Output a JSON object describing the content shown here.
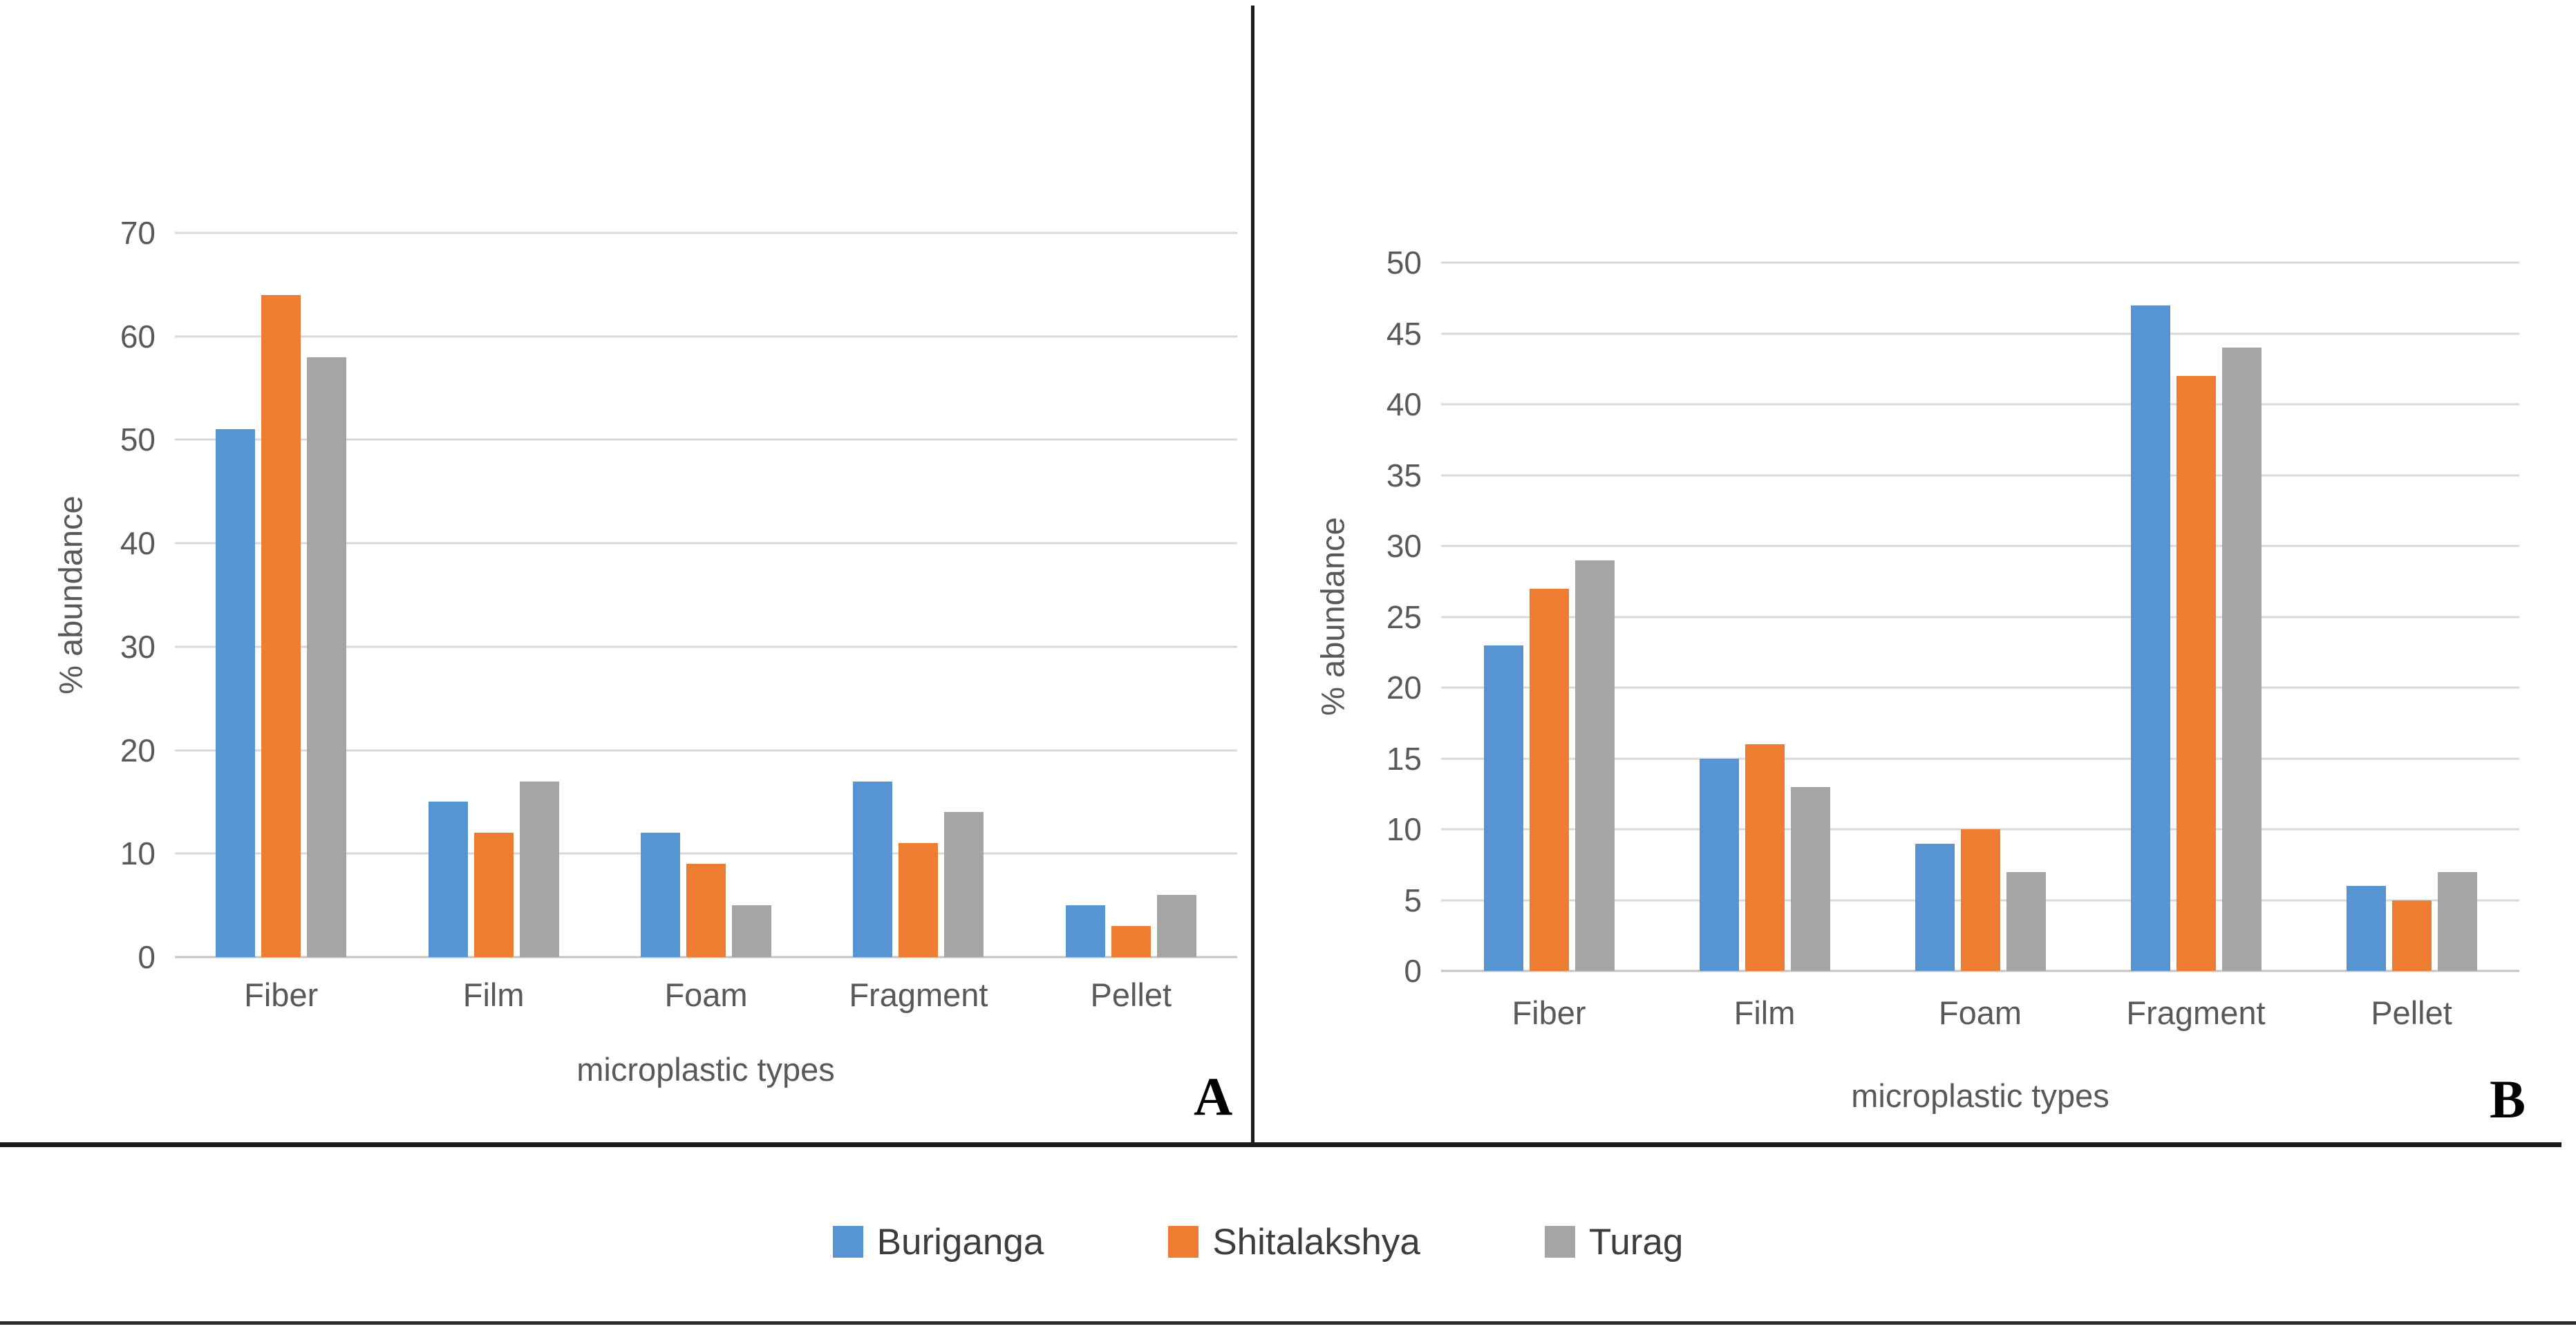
{
  "chart_data": [
    {
      "type": "bar",
      "panel_label": "A",
      "title": "",
      "xlabel": "microplastic types",
      "ylabel": "% abundance",
      "categories": [
        "Fiber",
        "Film",
        "Foam",
        "Fragment",
        "Pellet"
      ],
      "series": [
        {
          "name": "Buriganga",
          "values": [
            51,
            15,
            12,
            17,
            5
          ]
        },
        {
          "name": "Shitalakshya",
          "values": [
            64,
            12,
            9,
            11,
            3
          ]
        },
        {
          "name": "Turag",
          "values": [
            58,
            17,
            5,
            14,
            6
          ]
        }
      ],
      "ylim": [
        0,
        70
      ],
      "ytick_step": 10,
      "grid": true,
      "legend_position": "shared-bottom"
    },
    {
      "type": "bar",
      "panel_label": "B",
      "title": "",
      "xlabel": "microplastic types",
      "ylabel": "% abundance",
      "categories": [
        "Fiber",
        "Film",
        "Foam",
        "Fragment",
        "Pellet"
      ],
      "series": [
        {
          "name": "Buriganga",
          "values": [
            23,
            15,
            9,
            47,
            6
          ]
        },
        {
          "name": "Shitalakshya",
          "values": [
            27,
            16,
            10,
            42,
            5
          ]
        },
        {
          "name": "Turag",
          "values": [
            29,
            13,
            7,
            44,
            7
          ]
        }
      ],
      "ylim": [
        0,
        50
      ],
      "ytick_step": 5,
      "grid": true,
      "legend_position": "shared-bottom"
    }
  ],
  "legend": {
    "items": [
      {
        "label": "Buriganga",
        "color": "#5794D2"
      },
      {
        "label": "Shitalakshya",
        "color": "#ED7D31"
      },
      {
        "label": "Turag",
        "color": "#A5A5A5"
      }
    ]
  }
}
